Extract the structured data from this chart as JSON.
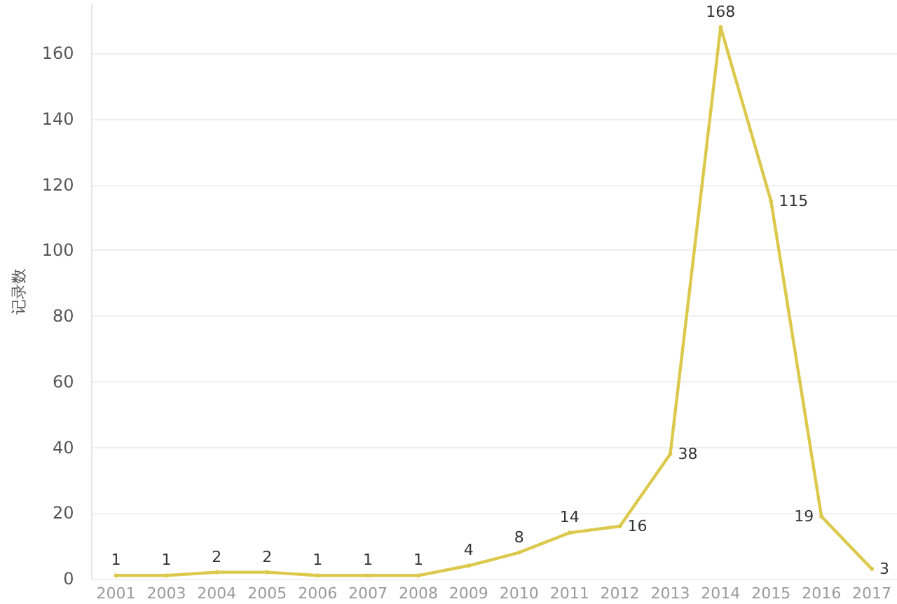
{
  "chart_data": {
    "type": "line",
    "ylabel": "记录数",
    "categories": [
      "2001",
      "2003",
      "2004",
      "2005",
      "2006",
      "2007",
      "2008",
      "2009",
      "2010",
      "2011",
      "2012",
      "2013",
      "2014",
      "2015",
      "2016",
      "2017"
    ],
    "values": [
      1,
      1,
      2,
      2,
      1,
      1,
      1,
      4,
      8,
      14,
      16,
      38,
      168,
      115,
      19,
      3
    ],
    "color": "#dcc94c",
    "ylim": [
      0,
      175
    ],
    "yticks": [
      0,
      20,
      40,
      60,
      80,
      100,
      120,
      140,
      160
    ],
    "grid": "y",
    "data_labels": true,
    "marker": "circle",
    "line_style": "solid"
  }
}
